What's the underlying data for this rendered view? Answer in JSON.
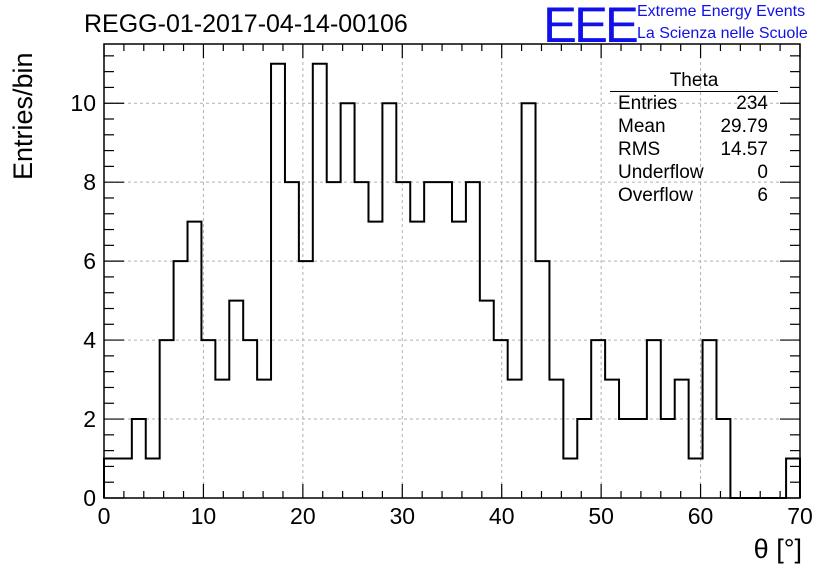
{
  "header": {
    "run_title": "REGG-01-2017-04-14-00106",
    "logo_text": "EEE",
    "logo_line1": "Extreme Energy Events",
    "logo_line2": "La Scienza nelle Scuole"
  },
  "stats_box": {
    "name": "Theta",
    "rows": [
      {
        "label": "Entries",
        "value": "234"
      },
      {
        "label": "Mean",
        "value": "29.79"
      },
      {
        "label": "RMS",
        "value": "14.57"
      },
      {
        "label": "Underflow",
        "value": "0"
      },
      {
        "label": "Overflow",
        "value": "6"
      }
    ]
  },
  "colors": {
    "logo": "#1010e8",
    "histogram": "#000000",
    "grid": "#b0b0b0"
  },
  "chart_data": {
    "type": "bar",
    "style": "step-histogram",
    "xlabel": "θ [°]",
    "ylabel": "Entries/bin",
    "xlim": [
      0,
      70
    ],
    "ylim": [
      0,
      11.5
    ],
    "bin_width": 1.4,
    "bin_edges_start": 0,
    "values": [
      1,
      1,
      2,
      1,
      4,
      6,
      7,
      4,
      3,
      5,
      4,
      3,
      11,
      8,
      6,
      11,
      8,
      10,
      8,
      7,
      10,
      8,
      7,
      8,
      8,
      7,
      8,
      5,
      4,
      3,
      10,
      6,
      3,
      1,
      2,
      4,
      3,
      2,
      2,
      4,
      2,
      3,
      1,
      4,
      2,
      0,
      0,
      0,
      0,
      1
    ],
    "x_ticks": [
      "0",
      "10",
      "20",
      "30",
      "40",
      "50",
      "60",
      "70"
    ],
    "y_ticks": [
      "0",
      "2",
      "4",
      "6",
      "8",
      "10"
    ],
    "grid": true
  }
}
